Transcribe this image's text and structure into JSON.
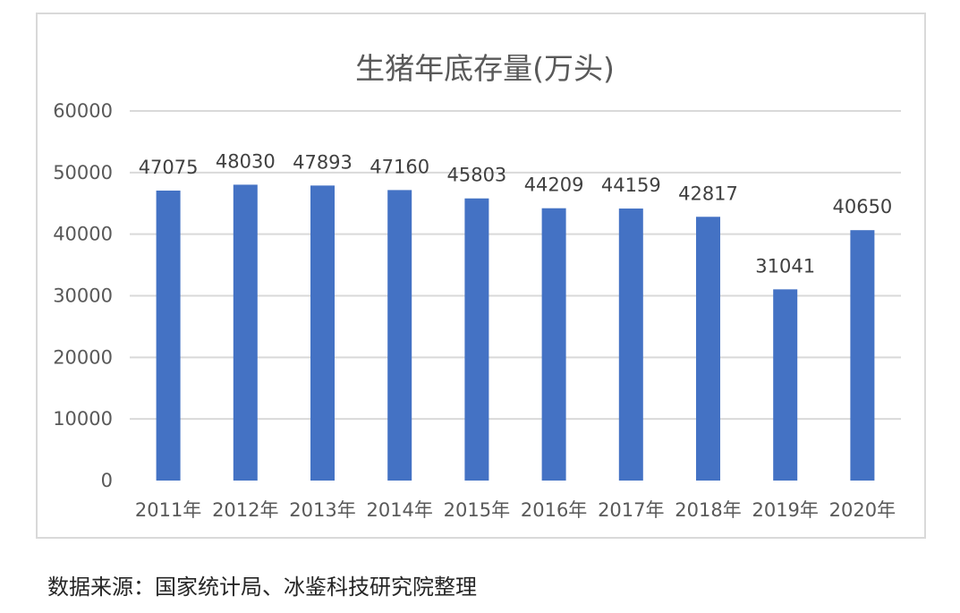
{
  "chart_data": {
    "type": "bar",
    "title": "生猪年底存量(万头)",
    "categories": [
      "2011年",
      "2012年",
      "2013年",
      "2014年",
      "2015年",
      "2016年",
      "2017年",
      "2018年",
      "2019年",
      "2020年"
    ],
    "series": [
      {
        "values": [
          47075,
          48030,
          47893,
          47160,
          45803,
          44209,
          44159,
          42817,
          31041,
          40650
        ]
      }
    ],
    "ylim": [
      0,
      60000
    ],
    "yticks": [
      0,
      10000,
      20000,
      30000,
      40000,
      50000,
      60000
    ],
    "grid": true,
    "data_labels": true,
    "bar_color": "#4472c4"
  },
  "footer": {
    "source": "数据来源：国家统计局、冰鉴科技研究院整理"
  }
}
